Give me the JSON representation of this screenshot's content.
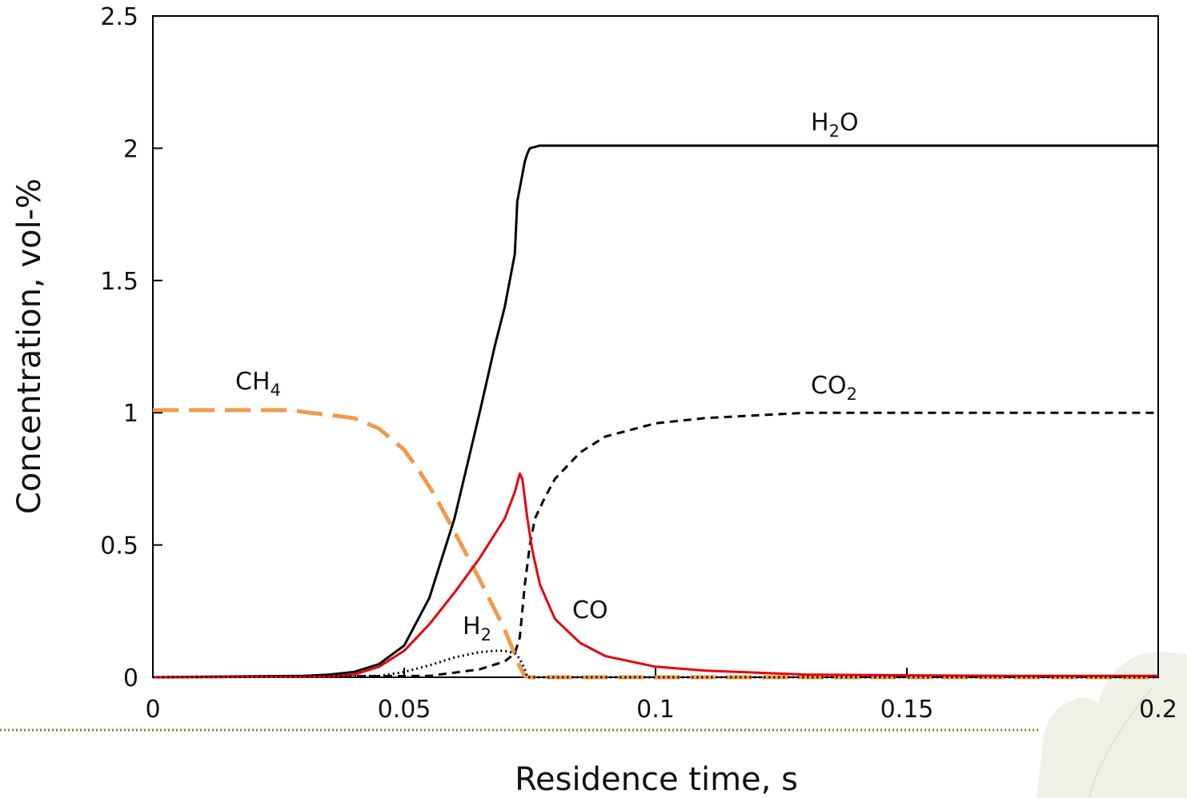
{
  "chart_data": {
    "type": "line",
    "xlabel": "Residence time, s",
    "ylabel": "Concentration, vol-%",
    "xlim": [
      0,
      0.2
    ],
    "ylim": [
      0,
      2.5
    ],
    "x_ticks": [
      "0",
      "0.05",
      "0.1",
      "0.15",
      "0.2"
    ],
    "y_ticks": [
      "0",
      "0.5",
      "1",
      "1.5",
      "2",
      "2.5"
    ],
    "grid": false,
    "legend": "none (inline labels)",
    "series": [
      {
        "name": "H2O",
        "label_main": "H",
        "label_sub": "2",
        "label_tail": "O",
        "color": "#000000",
        "style": "solid",
        "x": [
          0,
          0.03,
          0.035,
          0.04,
          0.045,
          0.05,
          0.055,
          0.06,
          0.065,
          0.068,
          0.07,
          0.072,
          0.0725,
          0.0735,
          0.074,
          0.0745,
          0.075,
          0.077,
          0.2
        ],
        "y": [
          0,
          0.005,
          0.01,
          0.02,
          0.05,
          0.12,
          0.3,
          0.6,
          1.0,
          1.25,
          1.4,
          1.6,
          1.8,
          1.9,
          1.95,
          1.98,
          2.0,
          2.01,
          2.01
        ]
      },
      {
        "name": "CO2",
        "label_main": "CO",
        "label_sub": "2",
        "label_tail": "",
        "color": "#000000",
        "style": "dashed",
        "x": [
          0,
          0.055,
          0.065,
          0.07,
          0.072,
          0.073,
          0.074,
          0.075,
          0.076,
          0.078,
          0.08,
          0.085,
          0.09,
          0.1,
          0.11,
          0.13,
          0.2
        ],
        "y": [
          0,
          0.005,
          0.03,
          0.06,
          0.09,
          0.15,
          0.35,
          0.5,
          0.6,
          0.68,
          0.75,
          0.85,
          0.91,
          0.96,
          0.98,
          1.0,
          1.0
        ]
      },
      {
        "name": "CH4",
        "label_main": "CH",
        "label_sub": "4",
        "label_tail": "",
        "color": "#F09A4A",
        "style": "longdash",
        "x": [
          0,
          0.027,
          0.04,
          0.045,
          0.05,
          0.053,
          0.056,
          0.06,
          0.065,
          0.07,
          0.073,
          0.074,
          0.075,
          0.2
        ],
        "y": [
          1.01,
          1.01,
          0.98,
          0.94,
          0.86,
          0.78,
          0.69,
          0.55,
          0.37,
          0.18,
          0.04,
          0.005,
          0.0,
          0.0
        ]
      },
      {
        "name": "CO",
        "label_main": "CO",
        "label_sub": "",
        "label_tail": "",
        "color": "#E8000B",
        "style": "solid",
        "x": [
          0,
          0.035,
          0.04,
          0.045,
          0.05,
          0.055,
          0.06,
          0.065,
          0.07,
          0.072,
          0.073,
          0.0735,
          0.0745,
          0.0755,
          0.077,
          0.08,
          0.085,
          0.09,
          0.1,
          0.11,
          0.13,
          0.17,
          0.2
        ],
        "y": [
          0,
          0.002,
          0.01,
          0.04,
          0.1,
          0.2,
          0.32,
          0.45,
          0.6,
          0.7,
          0.77,
          0.75,
          0.6,
          0.48,
          0.35,
          0.22,
          0.13,
          0.08,
          0.04,
          0.025,
          0.01,
          0.005,
          0.005
        ]
      },
      {
        "name": "H2",
        "label_main": "H",
        "label_sub": "2",
        "label_tail": "",
        "color": "#000000",
        "style": "dotted",
        "x": [
          0,
          0.045,
          0.05,
          0.055,
          0.06,
          0.065,
          0.068,
          0.07,
          0.072,
          0.073,
          0.074,
          0.0745,
          0.2
        ],
        "y": [
          0,
          0.005,
          0.02,
          0.045,
          0.075,
          0.095,
          0.1,
          0.1,
          0.09,
          0.07,
          0.03,
          0.0,
          0.0
        ]
      }
    ]
  }
}
